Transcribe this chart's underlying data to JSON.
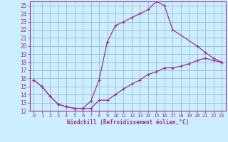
{
  "xlabel": "Windchill (Refroidissement éolien,°C)",
  "xlim": [
    -0.5,
    23.5
  ],
  "ylim": [
    12,
    25.5
  ],
  "xticks": [
    0,
    1,
    2,
    3,
    4,
    5,
    6,
    7,
    8,
    9,
    10,
    11,
    12,
    13,
    14,
    15,
    16,
    17,
    18,
    19,
    20,
    21,
    22,
    23
  ],
  "yticks": [
    12,
    13,
    14,
    15,
    16,
    17,
    18,
    19,
    20,
    21,
    22,
    23,
    24,
    25
  ],
  "line_color": "#993399",
  "bg_color": "#cceeff",
  "grid_color": "#99bbcc",
  "line1_x": [
    0,
    1,
    2,
    3,
    4,
    5,
    6,
    7,
    8,
    9,
    10,
    11,
    12,
    13,
    14,
    15,
    16,
    17,
    20,
    21,
    22,
    23
  ],
  "line1_y": [
    15.8,
    15.0,
    13.8,
    12.8,
    12.5,
    12.3,
    12.3,
    13.2,
    15.8,
    20.5,
    22.5,
    23.0,
    23.5,
    24.0,
    24.5,
    25.5,
    25.0,
    22.0,
    20.0,
    19.2,
    18.5,
    18.0
  ],
  "line2_x": [
    0,
    1,
    2,
    3,
    4,
    5,
    6,
    7,
    8,
    9,
    10,
    11,
    12,
    13,
    14,
    15,
    16,
    17,
    18,
    19,
    20,
    21,
    22,
    23
  ],
  "line2_y": [
    15.8,
    15.0,
    13.8,
    12.8,
    12.5,
    12.3,
    12.3,
    12.3,
    13.3,
    13.3,
    14.0,
    14.7,
    15.3,
    15.8,
    16.5,
    16.8,
    17.3,
    17.3,
    17.5,
    17.8,
    18.2,
    18.5,
    18.2,
    18.0
  ]
}
